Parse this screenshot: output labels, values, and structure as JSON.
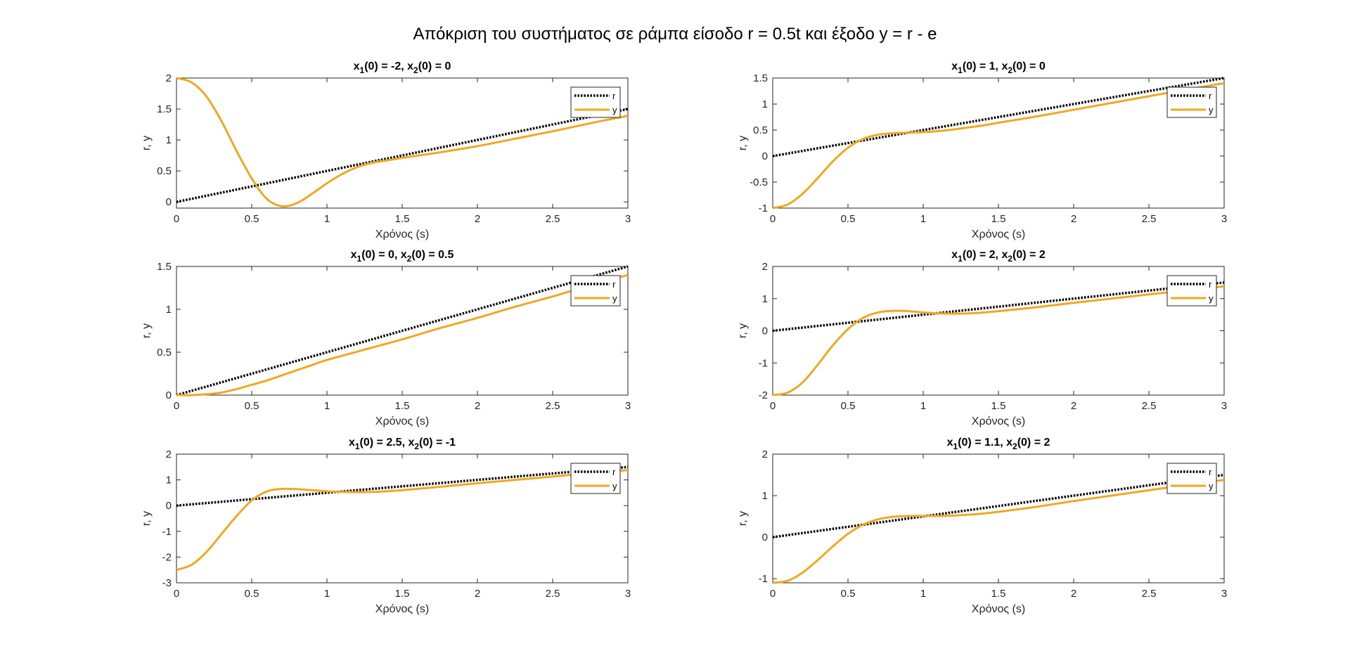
{
  "figure_title": "Απόκριση του συστήματος σε ράμπα είσοδο r = 0.5t και έξοδο y = r - e",
  "colors": {
    "r": "#000000",
    "y": "#EDA920",
    "axes": "#262626"
  },
  "chart_data": [
    {
      "type": "line",
      "title": {
        "p1": "x",
        "s1": "1",
        "p2": "(0) = -2, x",
        "s2": "2",
        "p3": "(0) = 0"
      },
      "xlabel": "Χρόνος (s)",
      "ylabel": "r, y",
      "xlim": [
        0,
        3
      ],
      "ylim": [
        -0.1,
        2
      ],
      "xticks": [
        "0",
        "0.5",
        "1",
        "1.5",
        "2",
        "2.5",
        "3"
      ],
      "yticks": [
        "0",
        "0.5",
        "1",
        "1.5",
        "2"
      ],
      "legend": [
        "r",
        "y"
      ],
      "legend_position": "top-right",
      "x": [
        0,
        0.1,
        0.2,
        0.3,
        0.4,
        0.5,
        0.6,
        0.7,
        0.8,
        0.9,
        1.0,
        1.1,
        1.2,
        1.3,
        1.4,
        1.5,
        1.75,
        2.0,
        2.25,
        2.5,
        2.75,
        3.0
      ],
      "series": [
        {
          "name": "r",
          "style": "dotted",
          "values": [
            0,
            0.05,
            0.1,
            0.15,
            0.2,
            0.25,
            0.3,
            0.35,
            0.4,
            0.45,
            0.5,
            0.55,
            0.6,
            0.65,
            0.7,
            0.75,
            0.875,
            1.0,
            1.125,
            1.25,
            1.375,
            1.5
          ]
        },
        {
          "name": "y",
          "style": "solid",
          "values": [
            2.0,
            1.93,
            1.7,
            1.3,
            0.82,
            0.38,
            0.05,
            -0.07,
            -0.02,
            0.13,
            0.3,
            0.45,
            0.56,
            0.63,
            0.67,
            0.71,
            0.8,
            0.9,
            1.02,
            1.14,
            1.27,
            1.39
          ]
        }
      ]
    },
    {
      "type": "line",
      "title": {
        "p1": "x",
        "s1": "1",
        "p2": "(0) = 1, x",
        "s2": "2",
        "p3": "(0) = 0"
      },
      "xlabel": "Χρόνος (s)",
      "ylabel": "r, y",
      "xlim": [
        0,
        3
      ],
      "ylim": [
        -1,
        1.5
      ],
      "xticks": [
        "0",
        "0.5",
        "1",
        "1.5",
        "2",
        "2.5",
        "3"
      ],
      "yticks": [
        "-1",
        "-0.5",
        "0",
        "0.5",
        "1",
        "1.5"
      ],
      "legend": [
        "r",
        "y"
      ],
      "legend_position": "top-right",
      "x": [
        0,
        0.1,
        0.2,
        0.3,
        0.4,
        0.5,
        0.6,
        0.7,
        0.8,
        0.9,
        1.0,
        1.1,
        1.2,
        1.3,
        1.4,
        1.5,
        1.75,
        2.0,
        2.25,
        2.5,
        2.75,
        3.0
      ],
      "series": [
        {
          "name": "r",
          "style": "dotted",
          "values": [
            0,
            0.05,
            0.1,
            0.15,
            0.2,
            0.25,
            0.3,
            0.35,
            0.4,
            0.45,
            0.5,
            0.55,
            0.6,
            0.65,
            0.7,
            0.75,
            0.875,
            1.0,
            1.125,
            1.25,
            1.375,
            1.5
          ]
        },
        {
          "name": "y",
          "style": "solid",
          "values": [
            -1.0,
            -0.93,
            -0.72,
            -0.42,
            -0.1,
            0.16,
            0.33,
            0.41,
            0.44,
            0.45,
            0.46,
            0.48,
            0.51,
            0.55,
            0.59,
            0.64,
            0.76,
            0.89,
            1.02,
            1.15,
            1.28,
            1.4
          ]
        }
      ]
    },
    {
      "type": "line",
      "title": {
        "p1": "x",
        "s1": "1",
        "p2": "(0) = 0, x",
        "s2": "2",
        "p3": "(0) = 0.5"
      },
      "xlabel": "Χρόνος (s)",
      "ylabel": "r, y",
      "xlim": [
        0,
        3
      ],
      "ylim": [
        0,
        1.5
      ],
      "xticks": [
        "0",
        "0.5",
        "1",
        "1.5",
        "2",
        "2.5",
        "3"
      ],
      "yticks": [
        "0",
        "0.5",
        "1",
        "1.5"
      ],
      "legend": [
        "r",
        "y"
      ],
      "legend_position": "top-right",
      "x": [
        0,
        0.1,
        0.2,
        0.3,
        0.4,
        0.5,
        0.6,
        0.7,
        0.8,
        0.9,
        1.0,
        1.25,
        1.5,
        1.75,
        2.0,
        2.25,
        2.5,
        2.75,
        3.0
      ],
      "series": [
        {
          "name": "r",
          "style": "dotted",
          "values": [
            0,
            0.05,
            0.1,
            0.15,
            0.2,
            0.25,
            0.3,
            0.35,
            0.4,
            0.45,
            0.5,
            0.625,
            0.75,
            0.875,
            1.0,
            1.125,
            1.25,
            1.375,
            1.5
          ]
        },
        {
          "name": "y",
          "style": "solid",
          "values": [
            0,
            0.0,
            0.01,
            0.03,
            0.07,
            0.12,
            0.17,
            0.23,
            0.29,
            0.35,
            0.41,
            0.53,
            0.65,
            0.78,
            0.9,
            1.03,
            1.15,
            1.28,
            1.4
          ]
        }
      ]
    },
    {
      "type": "line",
      "title": {
        "p1": "x",
        "s1": "1",
        "p2": "(0) = 2, x",
        "s2": "2",
        "p3": "(0) = 2"
      },
      "xlabel": "Χρόνος (s)",
      "ylabel": "r, y",
      "xlim": [
        0,
        3
      ],
      "ylim": [
        -2,
        2
      ],
      "xticks": [
        "0",
        "0.5",
        "1",
        "1.5",
        "2",
        "2.5",
        "3"
      ],
      "yticks": [
        "-2",
        "-1",
        "0",
        "1",
        "2"
      ],
      "legend": [
        "r",
        "y"
      ],
      "legend_position": "top-right",
      "x": [
        0,
        0.1,
        0.2,
        0.3,
        0.4,
        0.5,
        0.6,
        0.7,
        0.8,
        0.9,
        1.0,
        1.1,
        1.2,
        1.3,
        1.4,
        1.5,
        1.75,
        2.0,
        2.25,
        2.5,
        2.75,
        3.0
      ],
      "series": [
        {
          "name": "r",
          "style": "dotted",
          "values": [
            0,
            0.05,
            0.1,
            0.15,
            0.2,
            0.25,
            0.3,
            0.35,
            0.4,
            0.45,
            0.5,
            0.55,
            0.6,
            0.65,
            0.7,
            0.75,
            0.875,
            1.0,
            1.125,
            1.25,
            1.375,
            1.5
          ]
        },
        {
          "name": "y",
          "style": "solid",
          "values": [
            -2.0,
            -1.92,
            -1.6,
            -1.05,
            -0.45,
            0.05,
            0.4,
            0.57,
            0.62,
            0.61,
            0.57,
            0.54,
            0.53,
            0.54,
            0.57,
            0.61,
            0.73,
            0.87,
            1.0,
            1.13,
            1.26,
            1.38
          ]
        }
      ]
    },
    {
      "type": "line",
      "title": {
        "p1": "x",
        "s1": "1",
        "p2": "(0) = 2.5, x",
        "s2": "2",
        "p3": "(0) = -1"
      },
      "xlabel": "Χρόνος (s)",
      "ylabel": "r, y",
      "xlim": [
        0,
        3
      ],
      "ylim": [
        -3,
        2
      ],
      "xticks": [
        "0",
        "0.5",
        "1",
        "1.5",
        "2",
        "2.5",
        "3"
      ],
      "yticks": [
        "-3",
        "-2",
        "-1",
        "0",
        "1",
        "2"
      ],
      "legend": [
        "r",
        "y"
      ],
      "legend_position": "top-right",
      "x": [
        0,
        0.1,
        0.2,
        0.3,
        0.4,
        0.5,
        0.6,
        0.7,
        0.8,
        0.9,
        1.0,
        1.1,
        1.2,
        1.3,
        1.4,
        1.5,
        1.75,
        2.0,
        2.25,
        2.5,
        2.75,
        3.0
      ],
      "series": [
        {
          "name": "r",
          "style": "dotted",
          "values": [
            0,
            0.05,
            0.1,
            0.15,
            0.2,
            0.25,
            0.3,
            0.35,
            0.4,
            0.45,
            0.5,
            0.55,
            0.6,
            0.65,
            0.7,
            0.75,
            0.875,
            1.0,
            1.125,
            1.25,
            1.375,
            1.5
          ]
        },
        {
          "name": "y",
          "style": "solid",
          "values": [
            -2.5,
            -2.3,
            -1.8,
            -1.1,
            -0.4,
            0.2,
            0.55,
            0.65,
            0.64,
            0.6,
            0.56,
            0.53,
            0.52,
            0.53,
            0.56,
            0.6,
            0.73,
            0.87,
            1.0,
            1.13,
            1.26,
            1.38
          ]
        }
      ]
    },
    {
      "type": "line",
      "title": {
        "p1": "x",
        "s1": "1",
        "p2": "(0) = 1.1, x",
        "s2": "2",
        "p3": "(0) = 2"
      },
      "xlabel": "Χρόνος (s)",
      "ylabel": "r, y",
      "xlim": [
        0,
        3
      ],
      "ylim": [
        -1.1,
        2
      ],
      "xticks": [
        "0",
        "0.5",
        "1",
        "1.5",
        "2",
        "2.5",
        "3"
      ],
      "yticks": [
        "-1",
        "0",
        "1",
        "2"
      ],
      "legend": [
        "r",
        "y"
      ],
      "legend_position": "top-right",
      "x": [
        0,
        0.1,
        0.2,
        0.3,
        0.4,
        0.5,
        0.6,
        0.7,
        0.8,
        0.9,
        1.0,
        1.1,
        1.2,
        1.3,
        1.4,
        1.5,
        1.75,
        2.0,
        2.25,
        2.5,
        2.75,
        3.0
      ],
      "series": [
        {
          "name": "r",
          "style": "dotted",
          "values": [
            0,
            0.05,
            0.1,
            0.15,
            0.2,
            0.25,
            0.3,
            0.35,
            0.4,
            0.45,
            0.5,
            0.55,
            0.6,
            0.65,
            0.7,
            0.75,
            0.875,
            1.0,
            1.125,
            1.25,
            1.375,
            1.5
          ]
        },
        {
          "name": "y",
          "style": "solid",
          "values": [
            -1.1,
            -1.05,
            -0.85,
            -0.55,
            -0.22,
            0.08,
            0.3,
            0.43,
            0.49,
            0.51,
            0.51,
            0.51,
            0.52,
            0.54,
            0.57,
            0.61,
            0.73,
            0.87,
            1.0,
            1.13,
            1.26,
            1.38
          ]
        }
      ]
    }
  ]
}
